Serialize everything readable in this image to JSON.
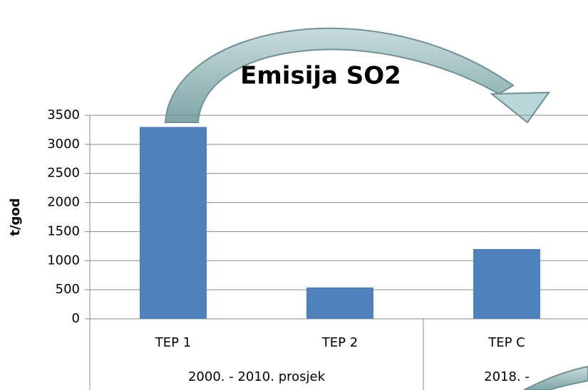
{
  "chart_data": {
    "type": "bar",
    "title": "Emisija SO2",
    "y_label": "t/god",
    "categories": [
      "TEP 1",
      "TEP 2",
      "TEP C"
    ],
    "category_groups": [
      "2000. - 2010. prosjek",
      null,
      "2018. -"
    ],
    "values": [
      3300,
      540,
      1200
    ],
    "color": "#4f81bd",
    "ylim": [
      0,
      3500
    ],
    "yticks": [
      0,
      500,
      1000,
      1500,
      2000,
      2500,
      3000,
      3500
    ],
    "grid": true
  }
}
